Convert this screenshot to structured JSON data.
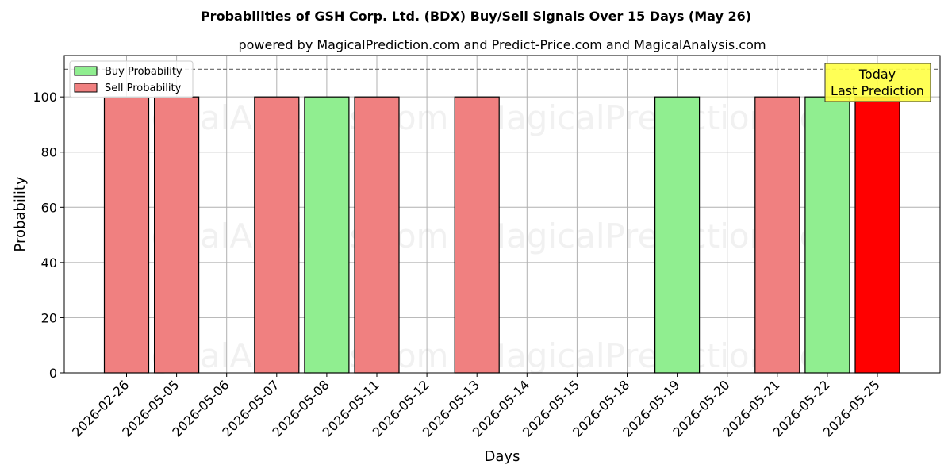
{
  "chart_data": {
    "type": "bar",
    "title": "Probabilities of GSH Corp. Ltd. (BDX) Buy/Sell Signals Over 15 Days (May 26)",
    "subtitle": "powered by MagicalPrediction.com and Predict-Price.com and MagicalAnalysis.com",
    "xlabel": "Days",
    "ylabel": "Probability",
    "ylim": [
      0,
      115
    ],
    "yticks": [
      0,
      20,
      40,
      60,
      80,
      100
    ],
    "reference_line": 110,
    "grid": true,
    "legend_position": "top-left",
    "categories": [
      "2026-02-26",
      "2026-05-05",
      "2026-05-06",
      "2026-05-07",
      "2026-05-08",
      "2026-05-11",
      "2026-05-12",
      "2026-05-13",
      "2026-05-14",
      "2026-05-15",
      "2026-05-18",
      "2026-05-19",
      "2026-05-20",
      "2026-05-21",
      "2026-05-22",
      "2026-05-25"
    ],
    "series": [
      {
        "name": "Buy Probability",
        "color": "#90ee90",
        "values": [
          0,
          0,
          0,
          0,
          100,
          0,
          0,
          0,
          0,
          0,
          0,
          100,
          0,
          0,
          100,
          0
        ]
      },
      {
        "name": "Sell Probability",
        "color": "#f08080",
        "values": [
          100,
          100,
          0,
          100,
          0,
          100,
          0,
          100,
          0,
          0,
          0,
          0,
          0,
          100,
          0,
          100
        ]
      }
    ],
    "highlight": {
      "category": "2026-05-25",
      "series": "Sell Probability",
      "color": "#ff0000"
    },
    "annotation": {
      "lines": [
        "Today",
        "Last Prediction"
      ],
      "background": "#ffff44"
    },
    "watermarks": [
      "MagicalAnalysis.com",
      "MagicalPrediction.com"
    ]
  }
}
